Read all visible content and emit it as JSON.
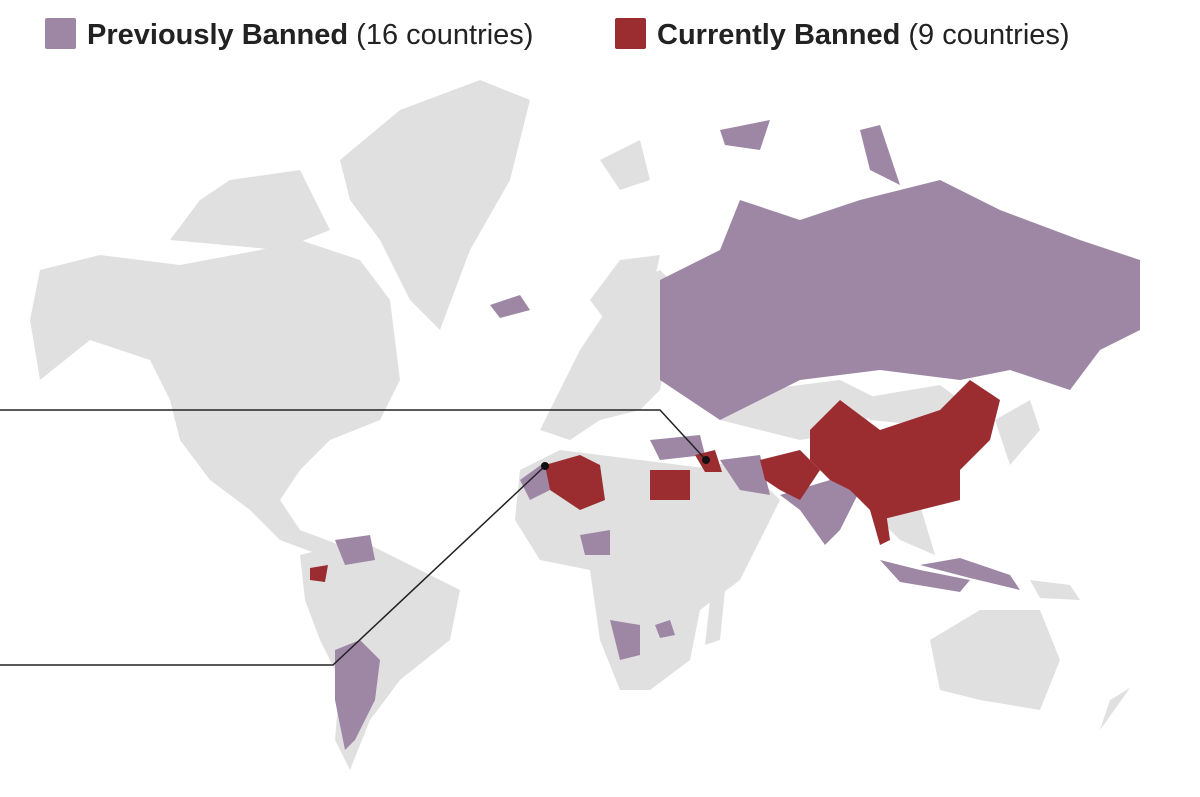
{
  "legend": {
    "items": [
      {
        "label": "Previously Banned",
        "count": "(16 countries)",
        "color": "#9e87a5"
      },
      {
        "label": "Currently Banned",
        "count": "(9 countries)",
        "color": "#9b2c2f"
      }
    ]
  }
}
